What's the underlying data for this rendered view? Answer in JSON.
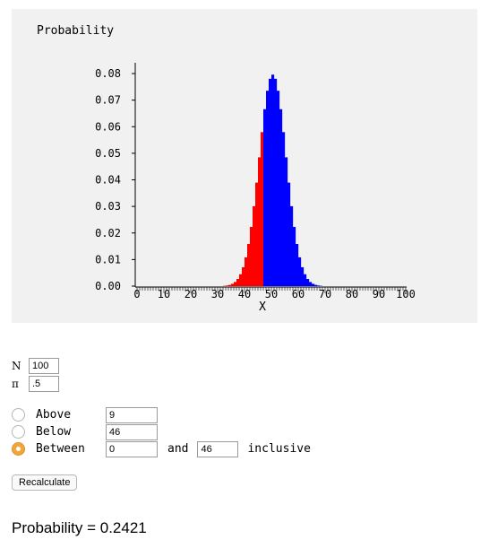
{
  "chart_data": {
    "type": "bar",
    "ylabel": "Probability",
    "xlabel": "X",
    "xlim": [
      0,
      100
    ],
    "ylim": [
      0,
      0.08
    ],
    "y_ticks": [
      "0.00",
      "0.01",
      "0.02",
      "0.03",
      "0.04",
      "0.05",
      "0.06",
      "0.07",
      "0.08"
    ],
    "x_ticks": [
      "0",
      "10",
      "20",
      "30",
      "40",
      "50",
      "60",
      "70",
      "80",
      "90",
      "100"
    ],
    "distribution": "binomial",
    "n": 100,
    "p": 0.5,
    "highlight_range": [
      0,
      46
    ],
    "highlight_color": "#ff0000",
    "base_color": "#0000ff",
    "background": "#f1f1f1"
  },
  "params": {
    "n_label": "N",
    "n_value": "100",
    "pi_label": "π",
    "pi_value": ".5"
  },
  "options": {
    "above_label": "Above",
    "above_value": "9",
    "below_label": "Below",
    "below_value": "46",
    "between_label": "Between",
    "between_low": "0",
    "and_label": "and",
    "between_high": "46",
    "inclusive_label": "inclusive",
    "selected": "between"
  },
  "recalculate_label": "Recalculate",
  "result": {
    "text": "Probability = 0.2421"
  }
}
